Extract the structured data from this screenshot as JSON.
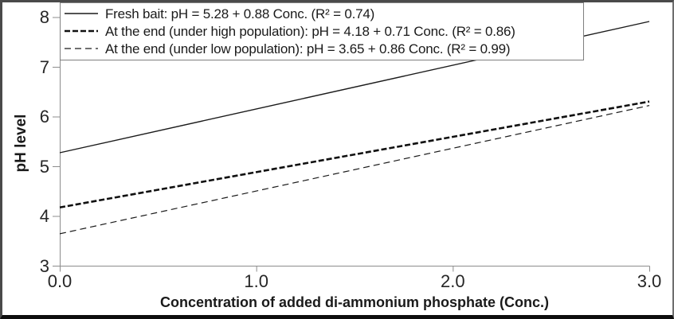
{
  "chart_data": {
    "type": "line",
    "title": "",
    "xlabel": "Concentration of added di-ammonium phosphate (Conc.)",
    "ylabel": "pH level",
    "xlim": [
      0,
      3
    ],
    "ylim": [
      3,
      8
    ],
    "grid": false,
    "legend_position": "top-left",
    "x_ticks": [
      {
        "value": 0,
        "label": "0.0"
      },
      {
        "value": 1,
        "label": "1.0"
      },
      {
        "value": 2,
        "label": "2.0"
      },
      {
        "value": 3,
        "label": "3.0"
      }
    ],
    "y_ticks": [
      {
        "value": 3,
        "label": "3"
      },
      {
        "value": 4,
        "label": "4"
      },
      {
        "value": 5,
        "label": "5"
      },
      {
        "value": 6,
        "label": "6"
      },
      {
        "value": 7,
        "label": "7"
      },
      {
        "value": 8,
        "label": "8"
      }
    ],
    "series": [
      {
        "id": "fresh-bait",
        "label": "Fresh bait: pH = 5.28 + 0.88 Conc. (R² = 0.74)",
        "intercept": 5.28,
        "slope": 0.88,
        "r_squared": 0.74,
        "line_style": "solid",
        "color": "#1a1a1a",
        "points": {
          "x": [
            0,
            3
          ],
          "y": [
            5.28,
            7.92
          ]
        }
      },
      {
        "id": "end-high-population",
        "label": "At the end (under high population): pH = 4.18 + 0.71 Conc. (R² = 0.86)",
        "intercept": 4.18,
        "slope": 0.71,
        "r_squared": 0.86,
        "line_style": "dashed-bold",
        "color": "#111111",
        "points": {
          "x": [
            0,
            3
          ],
          "y": [
            4.18,
            6.31
          ]
        }
      },
      {
        "id": "end-low-population",
        "label": "At the end (under low population): pH = 3.65 + 0.86 Conc. (R² = 0.99)",
        "intercept": 3.65,
        "slope": 0.86,
        "r_squared": 0.99,
        "line_style": "dashed-thin",
        "color": "#1a1a1a",
        "points": {
          "x": [
            0,
            3
          ],
          "y": [
            3.65,
            6.23
          ]
        }
      }
    ],
    "colors": {
      "axis_line": "#8c8c8c",
      "tick_text": "#262626",
      "series_line": "#111111",
      "legend_border": "#7f7f7f",
      "frame_border": "#4a4a4a",
      "background": "#ffffff"
    }
  }
}
